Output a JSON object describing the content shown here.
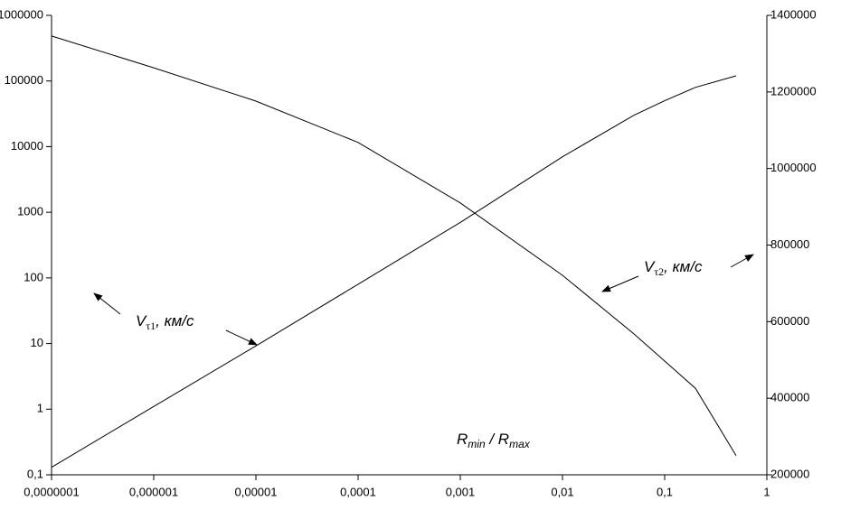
{
  "chart_data": {
    "type": "line",
    "x": [
      1e-07,
      1e-06,
      1e-05,
      0.0001,
      0.001,
      0.01,
      0.05,
      0.1,
      0.2,
      0.5
    ],
    "xscale": "log",
    "yscale": "log",
    "grid": false,
    "color": "#000000",
    "xlim": [
      1e-07,
      1
    ],
    "ylim": [
      0.1,
      1000000
    ],
    "y2lim": [
      200000,
      1400000
    ],
    "xticks": [
      {
        "value": 1e-07,
        "label": "0,0000001"
      },
      {
        "value": 1e-06,
        "label": "0,000001"
      },
      {
        "value": 1e-05,
        "label": "0,00001"
      },
      {
        "value": 0.0001,
        "label": "0,0001"
      },
      {
        "value": 0.001,
        "label": "0,001"
      },
      {
        "value": 0.01,
        "label": "0,01"
      },
      {
        "value": 0.1,
        "label": "0,1"
      },
      1
    ],
    "yticks": [
      {
        "value": 0.1,
        "label": "0,1"
      },
      1,
      10,
      100,
      1000,
      10000,
      100000,
      1000000
    ],
    "y2ticks": [
      200000,
      400000,
      600000,
      800000,
      1000000,
      1200000,
      1400000
    ],
    "x_label": [
      "R",
      "min",
      " / ",
      "R",
      "max"
    ],
    "series": [
      {
        "label_parts": [
          "V",
          "τ1",
          ", км/с"
        ],
        "color": "#000000",
        "values": [
          0.13,
          1.1,
          9.2,
          80,
          700,
          7000,
          30000,
          50000,
          80000,
          120000
        ]
      },
      {
        "label_parts": [
          "V",
          "τ2",
          ", км/с"
        ],
        "color": "#000000",
        "axis": "y2",
        "values": [
          1346000,
          1263000,
          1176000,
          1068000,
          910000,
          721000,
          568000,
          497000,
          426000,
          250000
        ]
      }
    ]
  }
}
